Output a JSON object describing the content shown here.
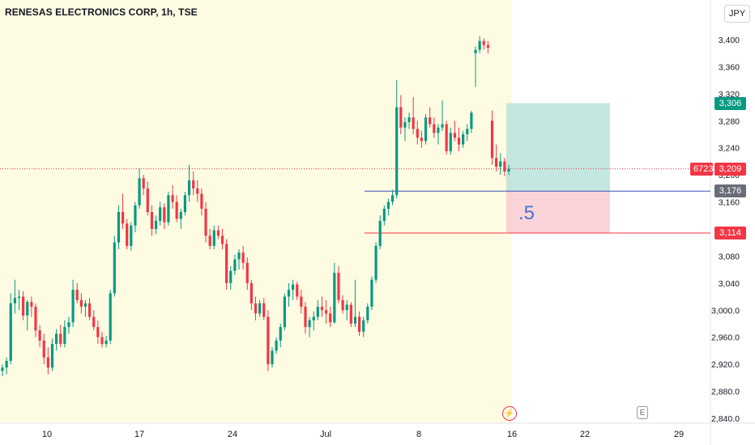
{
  "header": {
    "title": "RENESAS ELECTRONICS CORP, 1h, TSE",
    "currency": "JPY"
  },
  "chart_data": {
    "type": "candlestick",
    "symbol_badge": "6723",
    "ylim": [
      2830,
      3425
    ],
    "y_ticks": [
      2840,
      2880,
      2920,
      2960,
      3000,
      3040,
      3080,
      3120,
      3160,
      3200,
      3240,
      3280,
      3320,
      3360,
      3400
    ],
    "y_tick_labels": [
      "2,840.0",
      "2,880.0",
      "2,920.0",
      "2,960.0",
      "3,000.0",
      "3,040",
      "3,080",
      "3,120",
      "3,160",
      "3,200",
      "3,240",
      "3,280",
      "3,320",
      "3,360",
      "3,400"
    ],
    "x_ticks": [
      "10",
      "17",
      "24",
      "Jul",
      "8",
      "16",
      "22",
      "29"
    ],
    "price_levels": {
      "current": {
        "value": 3209,
        "label": "3,209",
        "color": "#f23645"
      },
      "entry": {
        "value": 3176,
        "label": "3,176",
        "color": "#3b55b8"
      },
      "target": {
        "value": 3306,
        "label": "3,306",
        "color": "#089981"
      },
      "stop": {
        "value": 3114,
        "label": "3,114",
        "color": "#f23645"
      }
    },
    "position_label": ".5",
    "candles": [
      [
        2910,
        2920,
        2902,
        2915
      ],
      [
        2915,
        2930,
        2905,
        2925
      ],
      [
        2925,
        3025,
        2920,
        3010
      ],
      [
        3010,
        3045,
        2995,
        3018
      ],
      [
        3018,
        3030,
        3000,
        3020
      ],
      [
        3020,
        3028,
        2985,
        2992
      ],
      [
        2992,
        3015,
        2970,
        3012
      ],
      [
        3012,
        3020,
        2990,
        3005
      ],
      [
        3005,
        3010,
        2960,
        2970
      ],
      [
        2970,
        2978,
        2945,
        2955
      ],
      [
        2955,
        2965,
        2920,
        2930
      ],
      [
        2930,
        2945,
        2905,
        2915
      ],
      [
        2915,
        2958,
        2910,
        2950
      ],
      [
        2950,
        2972,
        2940,
        2965
      ],
      [
        2965,
        2978,
        2945,
        2950
      ],
      [
        2950,
        2985,
        2945,
        2975
      ],
      [
        2975,
        2990,
        2965,
        2982
      ],
      [
        2982,
        3045,
        2975,
        3030
      ],
      [
        3030,
        3040,
        3010,
        3015
      ],
      [
        3015,
        3025,
        2995,
        3005
      ],
      [
        3005,
        3015,
        2990,
        3010
      ],
      [
        3010,
        3018,
        2985,
        2990
      ],
      [
        2990,
        3000,
        2970,
        2975
      ],
      [
        2975,
        2985,
        2950,
        2960
      ],
      [
        2960,
        2968,
        2945,
        2950
      ],
      [
        2950,
        2962,
        2945,
        2955
      ],
      [
        2955,
        3030,
        2950,
        3025
      ],
      [
        3025,
        3110,
        3020,
        3100
      ],
      [
        3100,
        3155,
        3090,
        3145
      ],
      [
        3145,
        3172,
        3120,
        3128
      ],
      [
        3128,
        3135,
        3090,
        3095
      ],
      [
        3095,
        3130,
        3088,
        3125
      ],
      [
        3125,
        3160,
        3115,
        3155
      ],
      [
        3155,
        3210,
        3150,
        3195
      ],
      [
        3195,
        3200,
        3170,
        3180
      ],
      [
        3180,
        3190,
        3140,
        3145
      ],
      [
        3145,
        3155,
        3110,
        3120
      ],
      [
        3120,
        3140,
        3112,
        3132
      ],
      [
        3132,
        3160,
        3125,
        3152
      ],
      [
        3152,
        3158,
        3120,
        3130
      ],
      [
        3130,
        3175,
        3125,
        3170
      ],
      [
        3170,
        3185,
        3150,
        3160
      ],
      [
        3160,
        3170,
        3130,
        3135
      ],
      [
        3135,
        3150,
        3120,
        3145
      ],
      [
        3145,
        3175,
        3140,
        3170
      ],
      [
        3170,
        3215,
        3160,
        3192
      ],
      [
        3192,
        3205,
        3170,
        3180
      ],
      [
        3180,
        3192,
        3160,
        3172
      ],
      [
        3172,
        3180,
        3140,
        3150
      ],
      [
        3150,
        3160,
        3100,
        3110
      ],
      [
        3110,
        3120,
        3090,
        3095
      ],
      [
        3095,
        3125,
        3090,
        3118
      ],
      [
        3118,
        3125,
        3105,
        3110
      ],
      [
        3110,
        3120,
        3090,
        3098
      ],
      [
        3098,
        3105,
        3030,
        3040
      ],
      [
        3040,
        3065,
        3030,
        3058
      ],
      [
        3058,
        3082,
        3052,
        3075
      ],
      [
        3075,
        3090,
        3060,
        3085
      ],
      [
        3085,
        3095,
        3060,
        3070
      ],
      [
        3070,
        3078,
        3030,
        3040
      ],
      [
        3040,
        3045,
        3000,
        3010
      ],
      [
        3010,
        3020,
        2985,
        2995
      ],
      [
        2995,
        3015,
        2990,
        3010
      ],
      [
        3010,
        3018,
        2985,
        2990
      ],
      [
        2990,
        3000,
        2910,
        2920
      ],
      [
        2920,
        2945,
        2915,
        2940
      ],
      [
        2940,
        2960,
        2935,
        2955
      ],
      [
        2955,
        2980,
        2945,
        2975
      ],
      [
        2975,
        3025,
        2970,
        3020
      ],
      [
        3020,
        3040,
        3005,
        3030
      ],
      [
        3030,
        3045,
        3015,
        3038
      ],
      [
        3038,
        3042,
        3015,
        3020
      ],
      [
        3020,
        3030,
        2995,
        3005
      ],
      [
        3005,
        3012,
        2965,
        2975
      ],
      [
        2975,
        2990,
        2960,
        2985
      ],
      [
        2985,
        2998,
        2970,
        2990
      ],
      [
        2990,
        3015,
        2985,
        3005
      ],
      [
        3005,
        3020,
        2990,
        3000
      ],
      [
        3000,
        3015,
        2980,
        2995
      ],
      [
        2995,
        3005,
        2975,
        2982
      ],
      [
        2982,
        3070,
        2980,
        3055
      ],
      [
        3055,
        3065,
        3010,
        3015
      ],
      [
        3015,
        3022,
        2995,
        3000
      ],
      [
        3000,
        3015,
        2985,
        3008
      ],
      [
        3008,
        3012,
        2975,
        2980
      ],
      [
        2980,
        3045,
        2975,
        2990
      ],
      [
        2990,
        2998,
        2962,
        2968
      ],
      [
        2968,
        2990,
        2960,
        2985
      ],
      [
        2985,
        3010,
        2980,
        3005
      ],
      [
        3005,
        3050,
        3000,
        3045
      ],
      [
        3045,
        3100,
        3040,
        3095
      ],
      [
        3095,
        3140,
        3090,
        3132
      ],
      [
        3132,
        3155,
        3125,
        3150
      ],
      [
        3150,
        3165,
        3140,
        3160
      ],
      [
        3160,
        3178,
        3155,
        3170
      ],
      [
        3170,
        3340,
        3165,
        3300
      ],
      [
        3300,
        3318,
        3260,
        3270
      ],
      [
        3270,
        3285,
        3250,
        3278
      ],
      [
        3278,
        3292,
        3268,
        3285
      ],
      [
        3285,
        3315,
        3260,
        3268
      ],
      [
        3268,
        3280,
        3245,
        3255
      ],
      [
        3255,
        3265,
        3240,
        3250
      ],
      [
        3250,
        3290,
        3245,
        3285
      ],
      [
        3285,
        3300,
        3270,
        3275
      ],
      [
        3275,
        3285,
        3255,
        3262
      ],
      [
        3262,
        3275,
        3245,
        3270
      ],
      [
        3270,
        3310,
        3265,
        3275
      ],
      [
        3275,
        3280,
        3230,
        3235
      ],
      [
        3235,
        3270,
        3230,
        3262
      ],
      [
        3262,
        3280,
        3250,
        3255
      ],
      [
        3255,
        3270,
        3235,
        3245
      ],
      [
        3245,
        3265,
        3240,
        3260
      ],
      [
        3260,
        3275,
        3250,
        3268
      ],
      [
        3268,
        3295,
        3262,
        3292
      ],
      [
        3380,
        3390,
        3330,
        3385
      ],
      [
        3385,
        3405,
        3380,
        3398
      ],
      [
        3398,
        3402,
        3385,
        3392
      ],
      [
        3392,
        3398,
        3380,
        3388
      ],
      [
        3280,
        3295,
        3215,
        3225
      ],
      [
        3225,
        3245,
        3205,
        3212
      ],
      [
        3212,
        3232,
        3200,
        3220
      ],
      [
        3220,
        3225,
        3198,
        3205
      ],
      [
        3205,
        3215,
        3200,
        3209
      ]
    ]
  }
}
